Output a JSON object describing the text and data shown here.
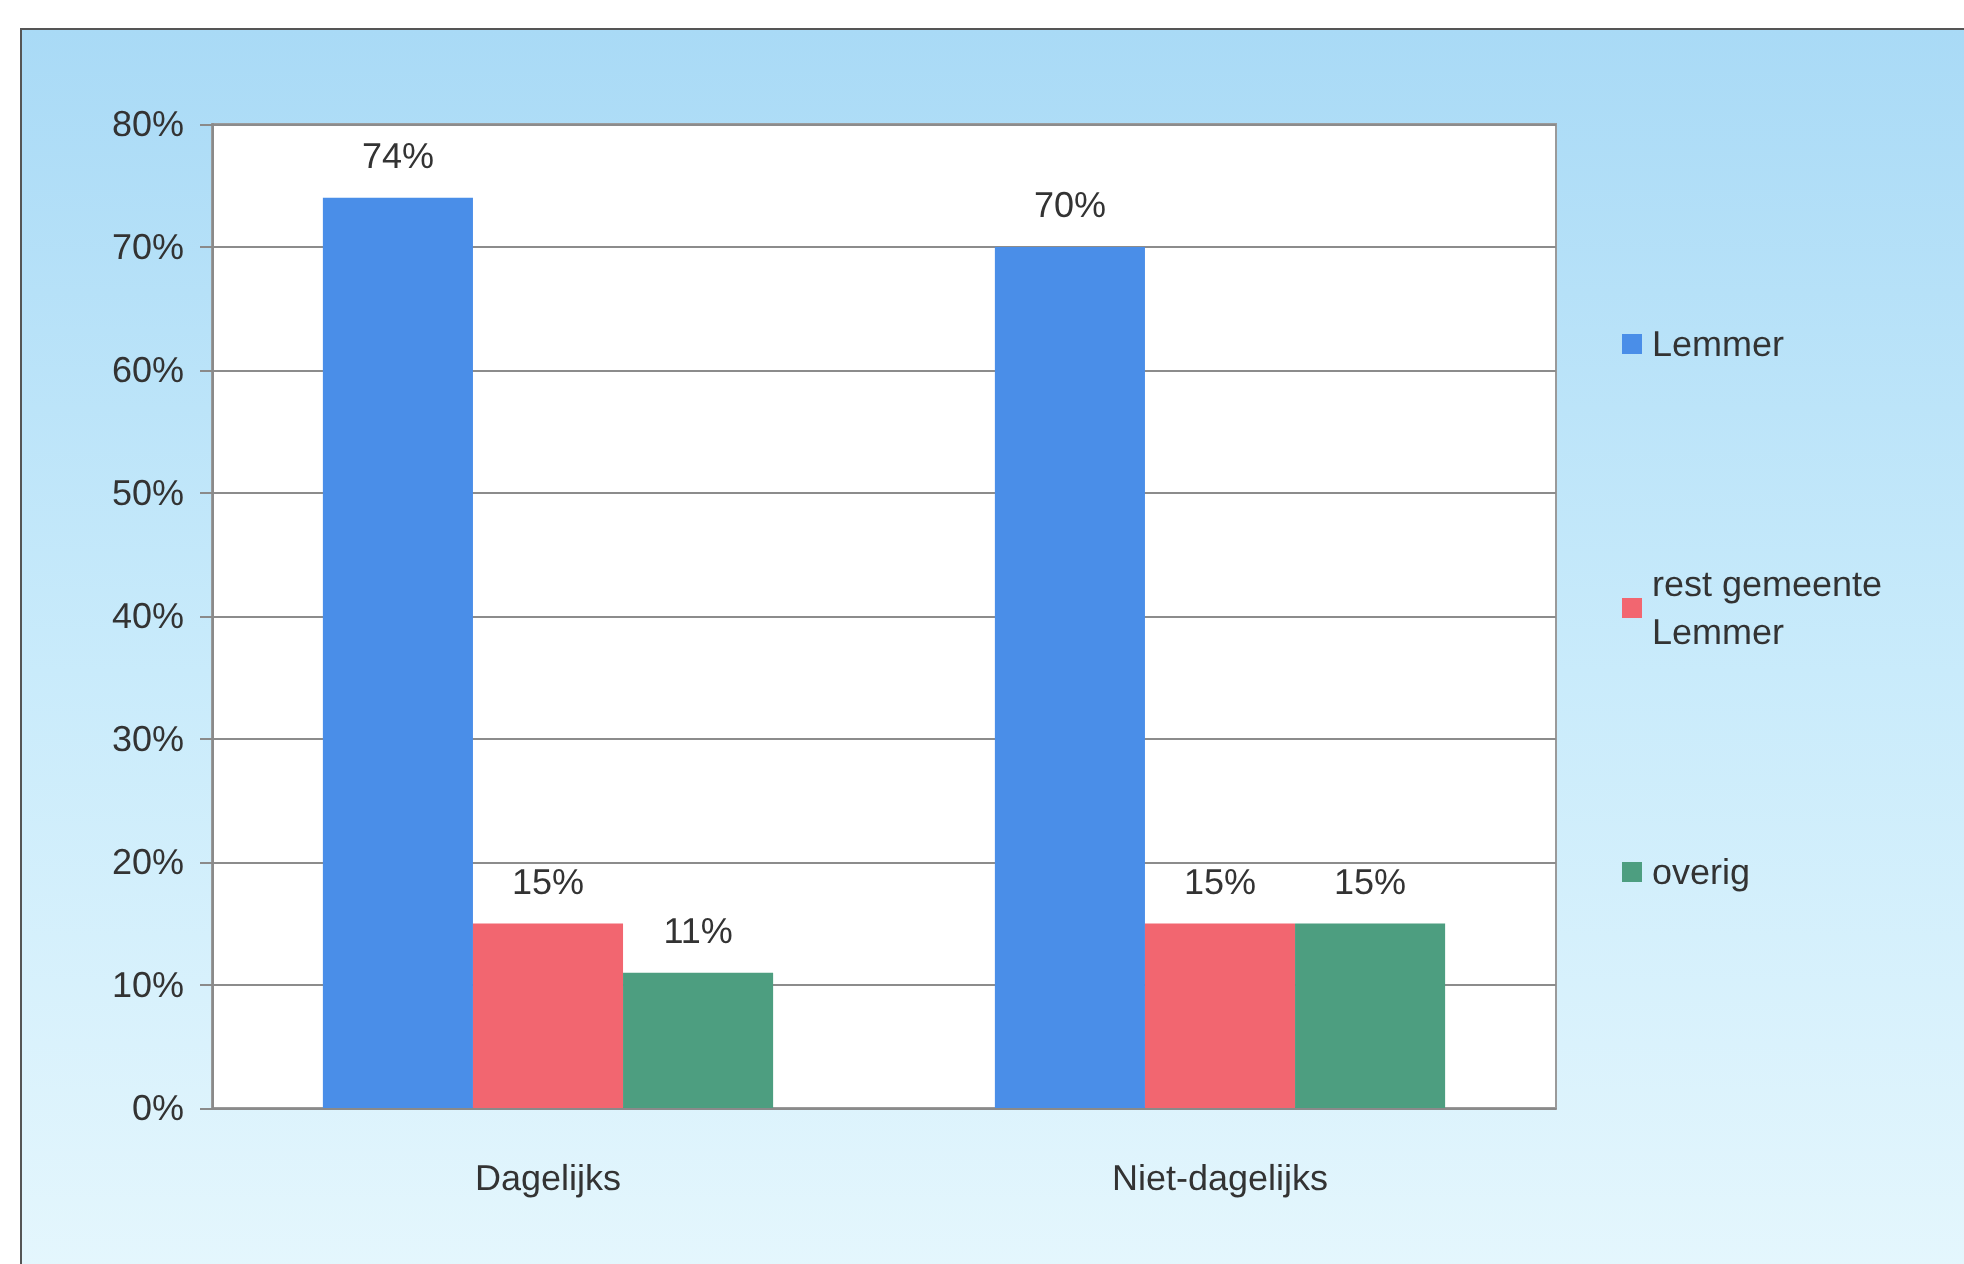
{
  "chart_data": {
    "type": "bar",
    "categories": [
      "Dagelijks",
      "Niet-dagelijks"
    ],
    "series": [
      {
        "name": "Lemmer",
        "color": "#4a8ee8",
        "values": [
          74,
          70
        ],
        "value_labels": [
          "74%",
          "70%"
        ]
      },
      {
        "name": "rest gemeente Lemmer",
        "color": "#f26670",
        "values": [
          15,
          15
        ],
        "value_labels": [
          "15%",
          "15%"
        ]
      },
      {
        "name": "overig",
        "color": "#4d9e80",
        "values": [
          11,
          15
        ],
        "value_labels": [
          "11%",
          "15%"
        ]
      }
    ],
    "ylim": [
      0,
      80
    ],
    "yticks": [
      {
        "value": 0,
        "label": "0%"
      },
      {
        "value": 10,
        "label": "10%"
      },
      {
        "value": 20,
        "label": "20%"
      },
      {
        "value": 30,
        "label": "30%"
      },
      {
        "value": 40,
        "label": "40%"
      },
      {
        "value": 50,
        "label": "50%"
      },
      {
        "value": 60,
        "label": "60%"
      },
      {
        "value": 70,
        "label": "70%"
      },
      {
        "value": 80,
        "label": "80%"
      }
    ],
    "grid": "y",
    "legend": "right"
  }
}
